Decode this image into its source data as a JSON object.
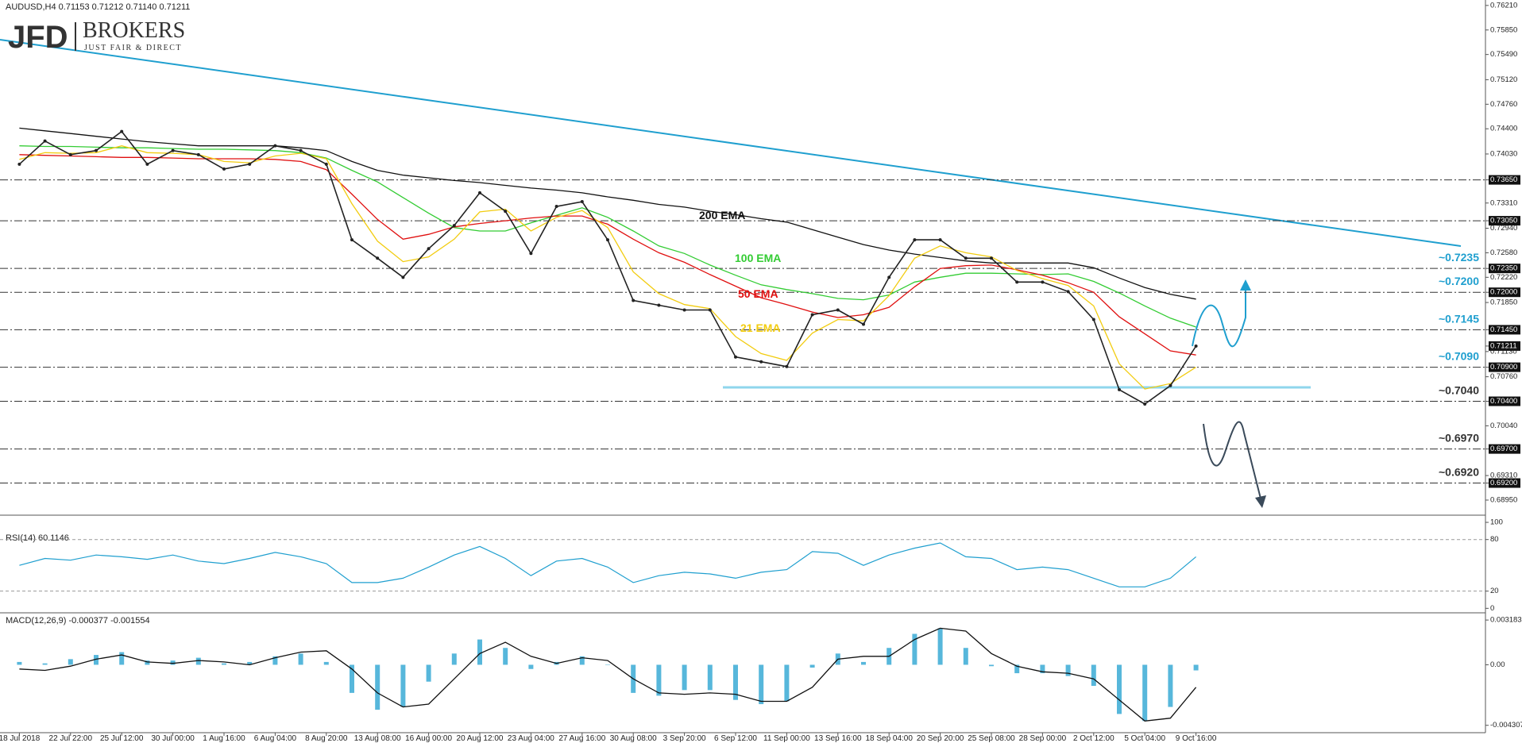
{
  "logo": {
    "name": "JFD",
    "brand": "BROKERS",
    "tagline": "JUST FAIR & DIRECT"
  },
  "chart_data": [
    {
      "type": "line",
      "title": "AUDUSD,H4  0.71153 0.71212 0.71140 0.71211",
      "categories": [
        "18 Jul 2018",
        null,
        "22 Jul 22:00",
        null,
        "25 Jul 12:00",
        null,
        "30 Jul 00:00",
        null,
        "1 Aug 16:00",
        null,
        "6 Aug 04:00",
        null,
        "8 Aug 20:00",
        null,
        "13 Aug 08:00",
        null,
        "16 Aug 00:00",
        null,
        "20 Aug 12:00",
        null,
        "23 Aug 04:00",
        null,
        "27 Aug 16:00",
        null,
        "30 Aug 08:00",
        null,
        "3 Sep 20:00",
        null,
        "6 Sep 12:00",
        null,
        "11 Sep 00:00",
        null,
        "13 Sep 16:00",
        null,
        "18 Sep 04:00",
        null,
        "20 Sep 20:00",
        null,
        "25 Sep 08:00",
        null,
        "28 Sep 00:00",
        null,
        "2 Oct 12:00",
        null,
        "5 Oct 04:00",
        null,
        "9 Oct 16:00"
      ],
      "values": [
        0.7388,
        0.7422,
        0.7402,
        0.7408,
        0.7436,
        0.7388,
        0.7408,
        0.7402,
        0.7381,
        0.7388,
        0.7415,
        0.7408,
        0.7388,
        0.7277,
        0.725,
        0.7222,
        0.7264,
        0.7298,
        0.7346,
        0.7319,
        0.7257,
        0.7326,
        0.7333,
        0.7277,
        0.7188,
        0.7181,
        0.7174,
        0.7174,
        0.7105,
        0.7098,
        0.7091,
        0.7167,
        0.7174,
        0.7153,
        0.7222,
        0.7277,
        0.7277,
        0.725,
        0.725,
        0.7215,
        0.7215,
        0.7201,
        0.716,
        0.7057,
        0.7036,
        0.7063,
        0.7121
      ],
      "color": "#222222",
      "series": [
        {
          "name": "200 EMA",
          "color": "#111111",
          "values": [
            0.7441,
            0.7437,
            0.7433,
            0.7429,
            0.7425,
            0.7421,
            0.7418,
            0.7415,
            0.7415,
            0.7415,
            0.7415,
            0.7412,
            0.7408,
            0.7392,
            0.7379,
            0.7372,
            0.7368,
            0.7364,
            0.7361,
            0.7357,
            0.7353,
            0.735,
            0.7346,
            0.734,
            0.7335,
            0.7329,
            0.7325,
            0.7319,
            0.7314,
            0.7308,
            0.7303,
            0.7292,
            0.7281,
            0.727,
            0.7262,
            0.7256,
            0.7251,
            0.7246,
            0.7243,
            0.7243,
            0.7243,
            0.7243,
            0.7236,
            0.7221,
            0.7207,
            0.7197,
            0.719
          ]
        },
        {
          "name": "100 EMA",
          "color": "#33cc33",
          "values": [
            0.7415,
            0.7414,
            0.7414,
            0.7413,
            0.7412,
            0.7412,
            0.7411,
            0.741,
            0.741,
            0.7409,
            0.7408,
            0.7405,
            0.7397,
            0.7379,
            0.7362,
            0.7339,
            0.7316,
            0.7295,
            0.729,
            0.729,
            0.7302,
            0.7313,
            0.7324,
            0.731,
            0.729,
            0.7268,
            0.7257,
            0.724,
            0.7225,
            0.7211,
            0.7204,
            0.7198,
            0.7191,
            0.7189,
            0.7196,
            0.7215,
            0.7222,
            0.7228,
            0.7228,
            0.7227,
            0.7226,
            0.7227,
            0.7216,
            0.7199,
            0.718,
            0.7162,
            0.7149
          ]
        },
        {
          "name": "50 EMA",
          "color": "#e01010",
          "values": [
            0.7402,
            0.7401,
            0.74,
            0.7399,
            0.7398,
            0.7398,
            0.7397,
            0.7396,
            0.7396,
            0.7396,
            0.7395,
            0.7392,
            0.738,
            0.7344,
            0.7307,
            0.7278,
            0.7285,
            0.7296,
            0.7301,
            0.7305,
            0.7309,
            0.7312,
            0.7312,
            0.73,
            0.7278,
            0.7258,
            0.7244,
            0.7226,
            0.7209,
            0.7192,
            0.7182,
            0.7171,
            0.7163,
            0.7167,
            0.7178,
            0.7208,
            0.7235,
            0.7239,
            0.724,
            0.7233,
            0.7225,
            0.7214,
            0.72,
            0.7164,
            0.7139,
            0.7114,
            0.7108
          ]
        },
        {
          "name": "21 EMA",
          "color": "#f2cc10",
          "values": [
            0.7395,
            0.7405,
            0.7404,
            0.7405,
            0.7415,
            0.7405,
            0.7404,
            0.7402,
            0.7392,
            0.739,
            0.74,
            0.7404,
            0.7396,
            0.733,
            0.7275,
            0.7245,
            0.7252,
            0.7278,
            0.7318,
            0.7322,
            0.729,
            0.731,
            0.732,
            0.7295,
            0.723,
            0.7198,
            0.7182,
            0.7176,
            0.7135,
            0.711,
            0.71,
            0.714,
            0.716,
            0.7158,
            0.7195,
            0.725,
            0.7268,
            0.7258,
            0.7252,
            0.7232,
            0.722,
            0.721,
            0.718,
            0.7095,
            0.7058,
            0.7066,
            0.709
          ]
        }
      ],
      "ylim": [
        0.6874,
        0.7629
      ],
      "yticks": [
        {
          "value": 0.7621,
          "label": "0.76210"
        },
        {
          "value": 0.7585,
          "label": "0.75850"
        },
        {
          "value": 0.7549,
          "label": "0.75490"
        },
        {
          "value": 0.7512,
          "label": "0.75120"
        },
        {
          "value": 0.7476,
          "label": "0.74760"
        },
        {
          "value": 0.744,
          "label": "0.74400"
        },
        {
          "value": 0.7403,
          "label": "0.74030"
        },
        {
          "value": 0.7365,
          "label": "0.73650",
          "box": true
        },
        {
          "value": 0.7331,
          "label": "0.73310"
        },
        {
          "value": 0.7305,
          "label": "0.73050",
          "box": true
        },
        {
          "value": 0.7294,
          "label": "0.72940"
        },
        {
          "value": 0.7258,
          "label": "0.72580"
        },
        {
          "value": 0.7235,
          "label": "0.72350",
          "box": true
        },
        {
          "value": 0.7222,
          "label": "0.72220"
        },
        {
          "value": 0.72,
          "label": "0.72000",
          "box": true
        },
        {
          "value": 0.7185,
          "label": "0.71850"
        },
        {
          "value": 0.7145,
          "label": "0.71450",
          "box": true
        },
        {
          "value": 0.71211,
          "label": "0.71211",
          "box": true
        },
        {
          "value": 0.7113,
          "label": "0.71130"
        },
        {
          "value": 0.709,
          "label": "0.70900",
          "box": true
        },
        {
          "value": 0.7076,
          "label": "0.70760"
        },
        {
          "value": 0.704,
          "label": "0.70400",
          "box": true
        },
        {
          "value": 0.7004,
          "label": "0.70040"
        },
        {
          "value": 0.697,
          "label": "0.69700",
          "box": true
        },
        {
          "value": 0.6931,
          "label": "0.69310"
        },
        {
          "value": 0.692,
          "label": "0.69200",
          "box": true
        },
        {
          "value": 0.6895,
          "label": "0.68950"
        }
      ],
      "levels": [
        {
          "value": 0.7365
        },
        {
          "value": 0.7305
        },
        {
          "value": 0.7235,
          "label": "~0.7235",
          "color": "#1f9fcf"
        },
        {
          "value": 0.72,
          "label": "~0.7200",
          "color": "#1f9fcf"
        },
        {
          "value": 0.7145,
          "label": "~0.7145",
          "color": "#1f9fcf"
        },
        {
          "value": 0.709,
          "label": "~0.7090",
          "color": "#1f9fcf"
        },
        {
          "value": 0.704,
          "label": "~0.7040",
          "color": "#333333"
        },
        {
          "value": 0.697,
          "label": "~0.6970",
          "color": "#333333"
        },
        {
          "value": 0.692,
          "label": "~0.6920",
          "color": "#333333"
        }
      ]
    },
    {
      "type": "line",
      "title": "RSI(14) 60.1146",
      "color": "#1f9fcf",
      "values": [
        50,
        58,
        56,
        62,
        60,
        57,
        62,
        55,
        52,
        58,
        65,
        60,
        52,
        30,
        30,
        35,
        48,
        62,
        72,
        58,
        38,
        55,
        58,
        48,
        30,
        38,
        42,
        40,
        35,
        42,
        45,
        66,
        64,
        50,
        62,
        70,
        76,
        60,
        58,
        45,
        48,
        45,
        35,
        25,
        25,
        35,
        60
      ],
      "ylim": [
        -4.3,
        106.5
      ],
      "yticks": [
        100,
        80,
        20,
        0
      ],
      "levels": [
        80,
        20
      ]
    },
    {
      "type": "bar",
      "title": "MACD(12,26,9) -0.000377 -0.001554",
      "color": "#1f9fcf",
      "signal_color": "#111111",
      "values": [
        0.0002,
        0.0001,
        0.0004,
        0.0007,
        0.0009,
        0.0003,
        0.0003,
        0.0005,
        0.0001,
        0.0002,
        0.0006,
        0.0008,
        0.0002,
        -0.002,
        -0.0032,
        -0.003,
        -0.0012,
        0.0008,
        0.0018,
        0.0012,
        -0.0003,
        0.0002,
        0.0006,
        0.0,
        -0.002,
        -0.0022,
        -0.0018,
        -0.0018,
        -0.0025,
        -0.0028,
        -0.0026,
        -0.0002,
        0.0008,
        0.0002,
        0.0012,
        0.0022,
        0.0026,
        0.0012,
        -0.0001,
        -0.0006,
        -0.0006,
        -0.0008,
        -0.0015,
        -0.0035,
        -0.004,
        -0.003,
        -0.0004
      ],
      "signal": [
        -0.0003,
        -0.0004,
        -0.0001,
        0.0004,
        0.0007,
        0.0002,
        0.0001,
        0.0003,
        0.0002,
        0.0,
        0.0005,
        0.0009,
        0.001,
        -0.0003,
        -0.002,
        -0.003,
        -0.0028,
        -0.001,
        0.0008,
        0.0016,
        0.0006,
        0.0001,
        0.0005,
        0.0003,
        -0.001,
        -0.002,
        -0.0021,
        -0.002,
        -0.0021,
        -0.0026,
        -0.0026,
        -0.0016,
        0.0004,
        0.0006,
        0.0006,
        0.0018,
        0.0026,
        0.0024,
        0.0008,
        -0.0001,
        -0.0005,
        -0.0006,
        -0.001,
        -0.0025,
        -0.004,
        -0.0038,
        -0.0016
      ],
      "ylim": [
        -0.004775,
        0.003584
      ],
      "yticks": [
        {
          "value": 0.003183,
          "label": "0.003183"
        },
        {
          "value": 0,
          "label": "0.00"
        },
        {
          "value": -0.004307,
          "label": "-0.004307"
        }
      ]
    }
  ]
}
